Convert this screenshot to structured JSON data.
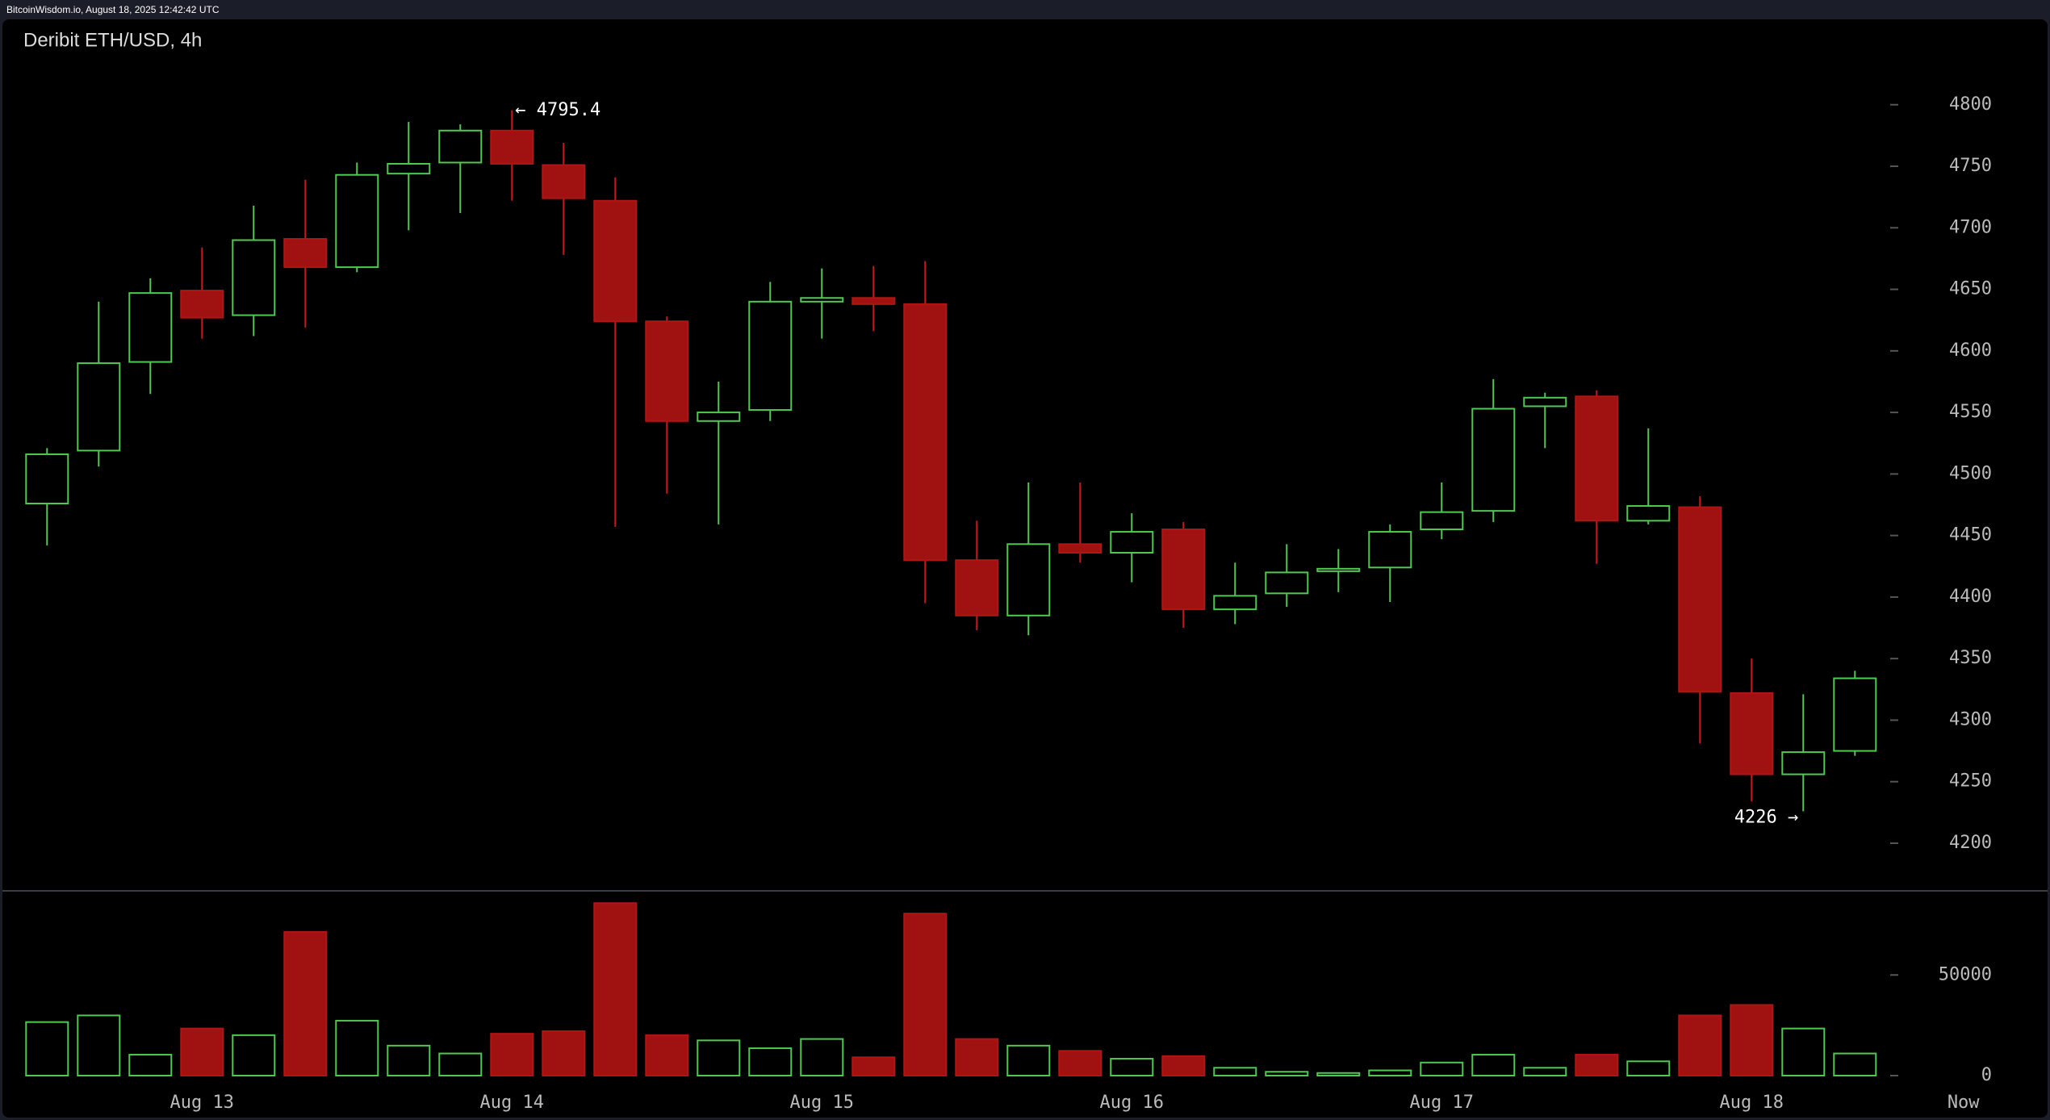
{
  "header": "BitcoinWisdom.io, August 18, 2025 12:42:42 UTC",
  "chart_data": {
    "type": "candlestick",
    "title": "Deribit ETH/USD, 4h",
    "categories": [
      null,
      null,
      null,
      "Aug 13",
      null,
      null,
      null,
      null,
      null,
      "Aug 14",
      null,
      null,
      null,
      null,
      null,
      "Aug 15",
      null,
      null,
      null,
      null,
      null,
      "Aug 16",
      null,
      null,
      null,
      null,
      null,
      "Aug 17",
      null,
      null,
      null,
      null,
      null,
      "Aug 18",
      null,
      null
    ],
    "end_label": "Now",
    "open": [
      4476,
      4519,
      4591,
      4649,
      4629,
      4691,
      4668,
      4744,
      4753,
      4779,
      4751,
      4722,
      4624,
      4543,
      4552,
      4640,
      4643,
      4638,
      4430,
      4385,
      4443,
      4436,
      4455,
      4390,
      4403,
      4421,
      4424,
      4455,
      4470,
      4555,
      4563,
      4462,
      4473,
      4322,
      4256,
      4275
    ],
    "high": [
      4521,
      4640,
      4659,
      4684,
      4718,
      4739,
      4753,
      4786,
      4784,
      4795.4,
      4769,
      4741,
      4628,
      4575,
      4656,
      4667,
      4669,
      4673,
      4462,
      4493,
      4493,
      4468,
      4461,
      4428,
      4443,
      4439,
      4459,
      4493,
      4577,
      4566,
      4568,
      4537,
      4482,
      4350,
      4321,
      4340
    ],
    "low": [
      4442,
      4506,
      4565,
      4610,
      4612,
      4619,
      4664,
      4698,
      4712,
      4722,
      4678,
      4457,
      4484,
      4459,
      4543,
      4610,
      4616,
      4395,
      4373,
      4369,
      4428,
      4412,
      4375,
      4378,
      4392,
      4404,
      4396,
      4447,
      4461,
      4521,
      4427,
      4459,
      4281,
      4234,
      4226,
      4271
    ],
    "close": [
      4516,
      4590,
      4647,
      4627,
      4690,
      4668,
      4743,
      4752,
      4779,
      4752,
      4724,
      4624,
      4543,
      4550,
      4640,
      4643,
      4638,
      4430,
      4385,
      4443,
      4436,
      4453,
      4390,
      4401,
      4420,
      4423,
      4453,
      4469,
      4553,
      4562,
      4462,
      4474,
      4323,
      4256,
      4274,
      4334
    ],
    "volume": [
      26600,
      29900,
      10400,
      23400,
      20100,
      71400,
      27300,
      14900,
      11000,
      20800,
      22100,
      85700,
      20100,
      17500,
      13600,
      18200,
      9100,
      80500,
      18200,
      14900,
      12300,
      8400,
      9700,
      3900,
      1900,
      1300,
      2600,
      6500,
      10400,
      3900,
      10400,
      7100,
      29900,
      35100,
      23400,
      11000
    ],
    "up_color": "#4fc94f",
    "down_color": "#a01212",
    "ylim": [
      4160,
      4830
    ],
    "yticks": [
      4200,
      4250,
      4300,
      4350,
      4400,
      4450,
      4500,
      4550,
      4600,
      4650,
      4700,
      4750,
      4800
    ],
    "volume_ylim": [
      0,
      91000
    ],
    "volume_yticks": [
      0,
      50000
    ],
    "annotations": [
      {
        "value": 4795.4,
        "label": "← 4795.4",
        "index": 9,
        "side": "right"
      },
      {
        "value": 4226,
        "label": "4226 →",
        "index": 34,
        "side": "left"
      }
    ]
  }
}
